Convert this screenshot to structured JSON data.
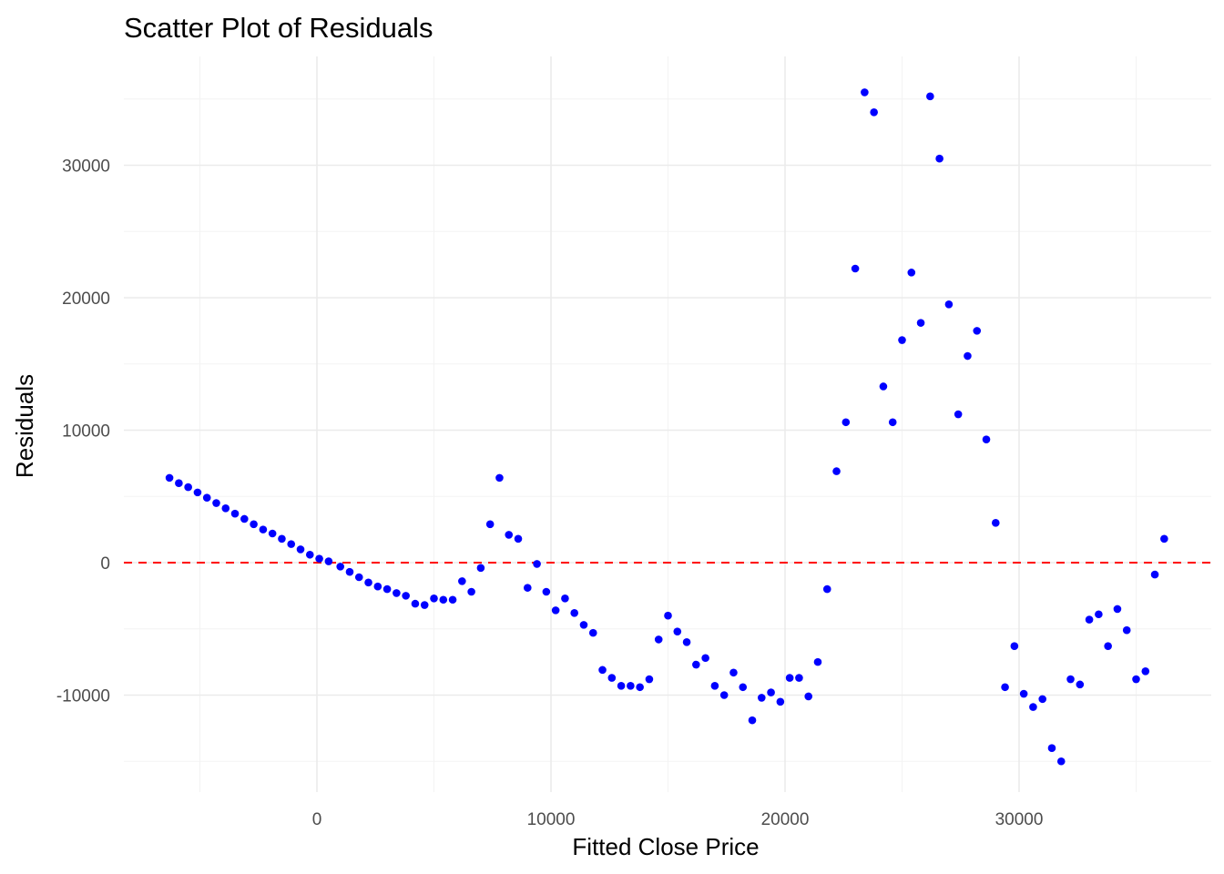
{
  "chart_data": {
    "type": "scatter",
    "title": "Scatter Plot of Residuals",
    "xlabel": "Fitted Close Price",
    "ylabel": "Residuals",
    "xlim": [
      -8500,
      38000
    ],
    "ylim": [
      -17500,
      38000
    ],
    "x_ticks": [
      0,
      10000,
      20000,
      30000
    ],
    "x_tick_labels": [
      "0",
      "10000",
      "20000",
      "30000"
    ],
    "x_minor_ticks": [
      -5000,
      5000,
      15000,
      25000,
      35000
    ],
    "y_ticks": [
      -10000,
      0,
      10000,
      20000,
      30000
    ],
    "y_tick_labels": [
      "-10000",
      "0",
      "10000",
      "20000",
      "30000"
    ],
    "y_minor_ticks": [
      -15000,
      -5000,
      5000,
      15000,
      25000,
      35000
    ],
    "reference_line": {
      "y": 0,
      "style": "dashed",
      "color": "#ff0000"
    },
    "point_color": "#0000ff",
    "grid": true,
    "legend": "none",
    "x": [
      -6300,
      -5900,
      -5500,
      -5100,
      -4700,
      -4300,
      -3900,
      -3500,
      -3100,
      -2700,
      -2300,
      -1900,
      -1500,
      -1100,
      -700,
      -300,
      100,
      500,
      1000,
      1400,
      1800,
      2200,
      2600,
      3000,
      3400,
      3800,
      4200,
      4600,
      5000,
      5400,
      5800,
      6200,
      6600,
      7000,
      7400,
      7800,
      8200,
      8600,
      9000,
      9400,
      9800,
      10200,
      10600,
      11000,
      11400,
      11800,
      12200,
      12600,
      13000,
      13400,
      13800,
      14200,
      14600,
      15000,
      15400,
      15800,
      16200,
      16600,
      17000,
      17400,
      17800,
      18200,
      18600,
      19000,
      19400,
      19800,
      20200,
      20600,
      21000,
      21400,
      21800,
      22200,
      22600,
      23000,
      23400,
      23800,
      24200,
      24600,
      25000,
      25400,
      25800,
      26200,
      26600,
      27000,
      27400,
      27800,
      28200,
      28600,
      29000,
      29400,
      29800,
      30200,
      30600,
      31000,
      31400,
      31800,
      32200,
      32600,
      33000,
      33400,
      33800,
      34200,
      34600,
      35000,
      35400,
      35800,
      36200
    ],
    "y": [
      6400,
      6000,
      5700,
      5300,
      4900,
      4500,
      4100,
      3700,
      3300,
      2900,
      2500,
      2200,
      1800,
      1400,
      1000,
      600,
      300,
      100,
      -300,
      -700,
      -1100,
      -1500,
      -1800,
      -2000,
      -2300,
      -2500,
      -3100,
      -3200,
      -2700,
      -2800,
      -2800,
      -1400,
      -2200,
      -400,
      2900,
      6400,
      2100,
      1800,
      -1900,
      -100,
      -2200,
      -3600,
      -2700,
      -3800,
      -4700,
      -5300,
      -8100,
      -8700,
      -9300,
      -9300,
      -9400,
      -8800,
      -5800,
      -4000,
      -5200,
      -6000,
      -7700,
      -7200,
      -9300,
      -10000,
      -8300,
      -9400,
      -11900,
      -10200,
      -9800,
      -10500,
      -8700,
      -8700,
      -10100,
      -7500,
      -2000,
      6900,
      10600,
      22200,
      35500,
      34000,
      13300,
      10600,
      16800,
      21900,
      18100,
      35200,
      30500,
      19500,
      11200,
      15600,
      17500,
      9300,
      3000,
      -9400,
      -6300,
      -9900,
      -10900,
      -10300,
      -14000,
      -15000,
      -8800,
      -9200,
      -4300,
      -3900,
      -6300,
      -3500,
      -5100,
      -8800,
      -8200,
      -900,
      1800
    ]
  }
}
